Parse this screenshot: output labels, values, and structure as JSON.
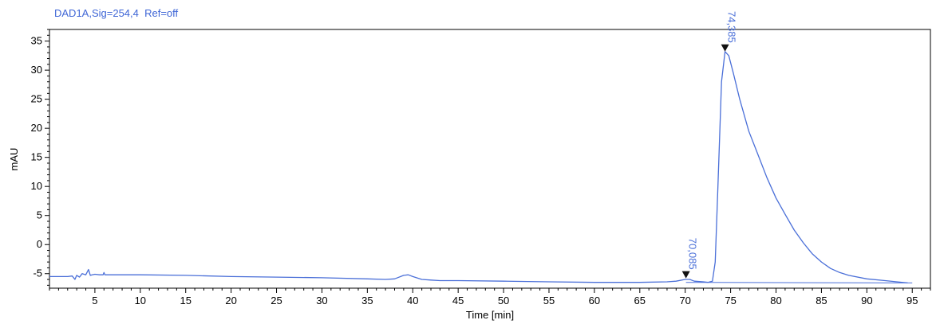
{
  "chart_data": {
    "type": "line",
    "title": "DAD1A,Sig=254,4  Ref=off",
    "xlabel": "Time [min]",
    "ylabel": "mAU",
    "xlim": [
      0,
      97
    ],
    "ylim": [
      -7.5,
      37
    ],
    "x_ticks": [
      5,
      10,
      15,
      20,
      25,
      30,
      35,
      40,
      45,
      50,
      55,
      60,
      65,
      70,
      75,
      80,
      85,
      90,
      95
    ],
    "y_ticks": [
      -5,
      0,
      5,
      10,
      15,
      20,
      25,
      30,
      35
    ],
    "grid": false,
    "line_color": "#4a6fd8",
    "peaks": [
      {
        "label": "70,085",
        "x": 70.085,
        "y": -5.8
      },
      {
        "label": "74,385",
        "x": 74.385,
        "y": 33.2
      }
    ],
    "baseline": {
      "x": [
        70.085,
        95
      ],
      "y": [
        -6.5,
        -6.6
      ]
    },
    "series": [
      {
        "x": [
          0,
          1,
          2,
          2.5,
          2.8,
          3.0,
          3.3,
          3.6,
          4.0,
          4.3,
          4.5,
          4.7,
          5.0,
          5.5,
          5.9,
          6.0,
          6.1,
          6.5,
          8,
          10,
          15,
          20,
          25,
          30,
          35,
          37,
          38,
          39,
          39.5,
          40,
          41,
          42,
          43,
          45,
          50,
          55,
          60,
          65,
          68,
          69,
          70,
          70.5,
          71,
          72,
          72.5,
          73,
          73.3,
          73.6,
          74,
          74.385,
          74.8,
          75.3,
          76,
          77,
          78,
          79,
          80,
          81,
          82,
          83,
          84,
          85,
          86,
          87,
          88,
          90,
          92,
          94.5
        ],
        "y": [
          -5.5,
          -5.5,
          -5.5,
          -5.4,
          -6.0,
          -5.3,
          -5.6,
          -5.0,
          -5.2,
          -4.3,
          -5.3,
          -5.2,
          -5.1,
          -5.2,
          -5.2,
          -4.8,
          -5.2,
          -5.2,
          -5.2,
          -5.2,
          -5.3,
          -5.5,
          -5.6,
          -5.7,
          -5.9,
          -6.0,
          -5.9,
          -5.3,
          -5.2,
          -5.5,
          -6.0,
          -6.1,
          -6.2,
          -6.2,
          -6.3,
          -6.4,
          -6.5,
          -6.5,
          -6.4,
          -6.3,
          -6.0,
          -6.0,
          -6.3,
          -6.4,
          -6.5,
          -6.3,
          -3.0,
          10,
          28,
          33.2,
          32.5,
          29.5,
          25,
          19.5,
          15.5,
          11.5,
          8,
          5.2,
          2.5,
          0.3,
          -1.6,
          -3.0,
          -4.1,
          -4.8,
          -5.3,
          -5.9,
          -6.2,
          -6.6
        ]
      }
    ]
  }
}
